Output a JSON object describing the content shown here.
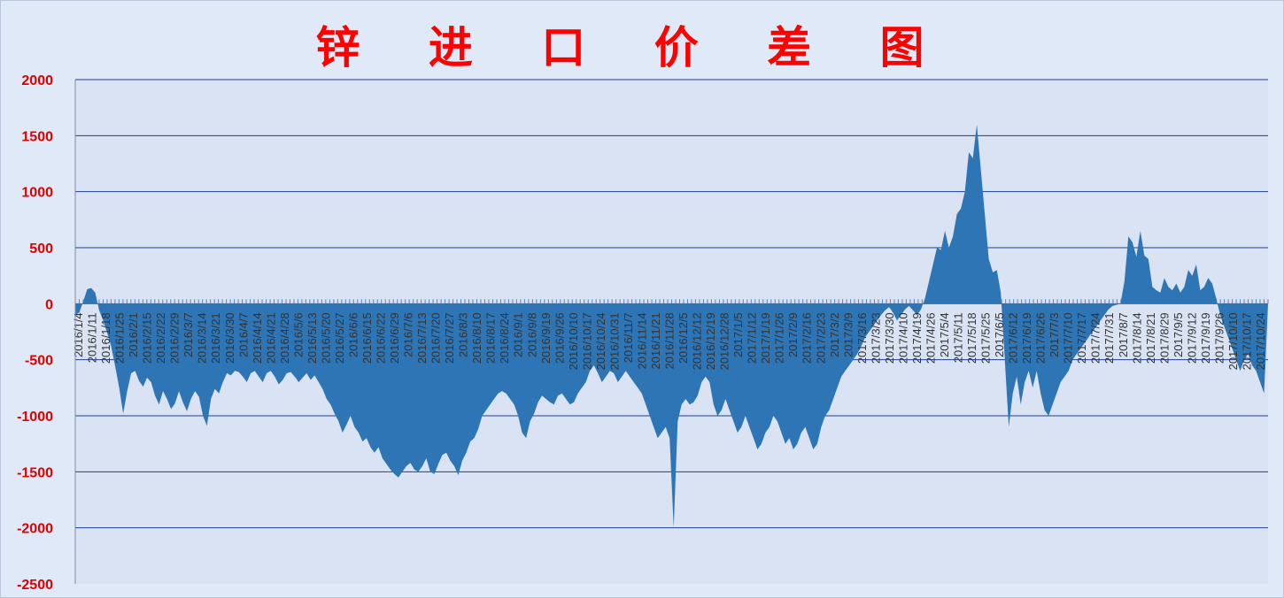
{
  "chart_data": {
    "type": "area",
    "title": "锌 进 口 价 差 图",
    "xlabel": "",
    "ylabel": "",
    "ylim": [
      -2500,
      2000
    ],
    "yticks": [
      2000,
      1500,
      1000,
      500,
      0,
      -500,
      -1000,
      -1500,
      -2000,
      -2500
    ],
    "grid": true,
    "legend": "none",
    "colors": {
      "area": "#2e75b6",
      "grid": "#1f3f8f",
      "title": "#ff0000",
      "ytick": "#e00000",
      "plot_bg": "#dae3f3"
    },
    "x_tick_labels": [
      "2016/1/4",
      "2016/1/11",
      "2016/1/18",
      "2016/1/25",
      "2016/2/1",
      "2016/2/15",
      "2016/2/22",
      "2016/2/29",
      "2016/3/7",
      "2016/3/14",
      "2016/3/21",
      "2016/3/30",
      "2016/4/7",
      "2016/4/14",
      "2016/4/21",
      "2016/4/28",
      "2016/5/6",
      "2016/5/13",
      "2016/5/20",
      "2016/5/27",
      "2016/6/6",
      "2016/6/15",
      "2016/6/22",
      "2016/6/29",
      "2016/7/6",
      "2016/7/13",
      "2016/7/20",
      "2016/7/27",
      "2016/8/3",
      "2016/8/10",
      "2016/8/17",
      "2016/8/24",
      "2016/9/1",
      "2016/9/8",
      "2016/9/19",
      "2016/9/26",
      "2016/10/10",
      "2016/10/17",
      "2016/10/24",
      "2016/10/31",
      "2016/11/7",
      "2016/11/14",
      "2016/11/21",
      "2016/11/28",
      "2016/12/5",
      "2016/12/12",
      "2016/12/19",
      "2016/12/28",
      "2017/1/5",
      "2017/1/12",
      "2017/1/19",
      "2017/1/26",
      "2017/2/9",
      "2017/2/16",
      "2017/2/23",
      "2017/3/2",
      "2017/3/9",
      "2017/3/16",
      "2017/3/23",
      "2017/3/30",
      "2017/4/10",
      "2017/4/19",
      "2017/4/26",
      "2017/5/4",
      "2017/5/11",
      "2017/5/18",
      "2017/5/25",
      "2017/6/5",
      "2017/6/12",
      "2017/6/19",
      "2017/6/26",
      "2017/7/3",
      "2017/7/10",
      "2017/7/17",
      "2017/7/24",
      "2017/7/31",
      "2017/8/7",
      "2017/8/14",
      "2017/8/21",
      "2017/8/29",
      "2017/9/5",
      "2017/9/12",
      "2017/9/19",
      "2017/9/26",
      "2017/10/10",
      "2017/10/17",
      "2017/10/24"
    ],
    "series": [
      {
        "values": [
          -100,
          -80,
          20,
          130,
          140,
          100,
          -60,
          -150,
          -260,
          -380,
          -560,
          -750,
          -980,
          -780,
          -620,
          -600,
          -690,
          -740,
          -660,
          -700,
          -820,
          -900,
          -780,
          -850,
          -940,
          -890,
          -780,
          -880,
          -960,
          -850,
          -780,
          -830,
          -1000,
          -1090,
          -850,
          -760,
          -800,
          -700,
          -620,
          -640,
          -600,
          -610,
          -650,
          -700,
          -620,
          -600,
          -650,
          -700,
          -620,
          -600,
          -650,
          -720,
          -680,
          -620,
          -610,
          -650,
          -700,
          -660,
          -620,
          -680,
          -640,
          -700,
          -760,
          -850,
          -900,
          -980,
          -1050,
          -1150,
          -1080,
          -1000,
          -1100,
          -1150,
          -1230,
          -1200,
          -1280,
          -1330,
          -1280,
          -1380,
          -1430,
          -1480,
          -1520,
          -1550,
          -1500,
          -1450,
          -1420,
          -1480,
          -1500,
          -1450,
          -1380,
          -1500,
          -1520,
          -1430,
          -1350,
          -1330,
          -1400,
          -1450,
          -1530,
          -1400,
          -1330,
          -1230,
          -1200,
          -1120,
          -1000,
          -950,
          -900,
          -850,
          -800,
          -780,
          -800,
          -850,
          -900,
          -1000,
          -1150,
          -1200,
          -1050,
          -980,
          -880,
          -820,
          -850,
          -880,
          -900,
          -820,
          -800,
          -850,
          -900,
          -880,
          -800,
          -750,
          -700,
          -600,
          -550,
          -620,
          -700,
          -650,
          -600,
          -620,
          -700,
          -650,
          -600,
          -650,
          -700,
          -750,
          -800,
          -900,
          -1000,
          -1100,
          -1200,
          -1150,
          -1100,
          -1200,
          -2000,
          -1050,
          -900,
          -850,
          -900,
          -880,
          -820,
          -700,
          -650,
          -700,
          -900,
          -1000,
          -950,
          -850,
          -950,
          -1050,
          -1150,
          -1100,
          -1000,
          -1100,
          -1200,
          -1300,
          -1250,
          -1150,
          -1100,
          -1000,
          -1050,
          -1150,
          -1250,
          -1200,
          -1300,
          -1250,
          -1150,
          -1100,
          -1200,
          -1300,
          -1250,
          -1100,
          -1000,
          -950,
          -850,
          -750,
          -650,
          -600,
          -550,
          -500,
          -450,
          -380,
          -300,
          -250,
          -200,
          -150,
          -100,
          -60,
          -30,
          -80,
          -150,
          -100,
          -50,
          -20,
          -60,
          -100,
          -50,
          50,
          200,
          350,
          500,
          480,
          650,
          500,
          600,
          800,
          850,
          1000,
          1350,
          1300,
          1600,
          1200,
          800,
          400,
          280,
          300,
          100,
          -500,
          -1100,
          -800,
          -650,
          -900,
          -700,
          -600,
          -750,
          -600,
          -800,
          -950,
          -1000,
          -900,
          -800,
          -700,
          -650,
          -600,
          -500,
          -450,
          -400,
          -350,
          -300,
          -250,
          -200,
          -150,
          -100,
          -50,
          -20,
          -10,
          0,
          200,
          600,
          550,
          420,
          650,
          430,
          400,
          150,
          120,
          100,
          230,
          150,
          120,
          180,
          100,
          150,
          300,
          250,
          350,
          120,
          150,
          230,
          180,
          50,
          -100,
          -200,
          -300,
          -400,
          -500,
          -600,
          -500,
          -450,
          -550,
          -600,
          -700,
          -800,
          0
        ]
      }
    ]
  }
}
